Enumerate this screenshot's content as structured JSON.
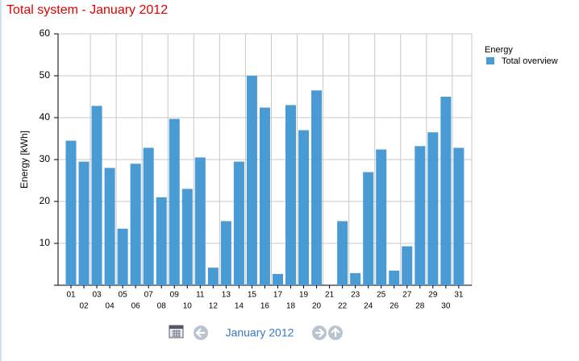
{
  "chart_data": {
    "type": "bar",
    "title": "Total system - January 2012",
    "y_label": "Energy [kWh]",
    "legend_title": "Energy",
    "legend": "top-right",
    "grid": true,
    "categories": [
      "01",
      "02",
      "03",
      "04",
      "05",
      "06",
      "07",
      "08",
      "09",
      "10",
      "11",
      "12",
      "13",
      "14",
      "15",
      "16",
      "17",
      "18",
      "19",
      "20",
      "21",
      "22",
      "23",
      "24",
      "25",
      "26",
      "27",
      "28",
      "29",
      "30",
      "31"
    ],
    "series": [
      {
        "name": "Total overview",
        "color": "#4a9ad4",
        "values": [
          34.5,
          29.5,
          42.8,
          28,
          13.5,
          29,
          32.8,
          21,
          39.7,
          23,
          30.5,
          4.2,
          15.3,
          29.5,
          50,
          42.4,
          2.7,
          43,
          37,
          46.5,
          null,
          15.3,
          2.9,
          27,
          32.4,
          3.5,
          9.3,
          33.2,
          36.5,
          45,
          32.8
        ]
      }
    ],
    "ylim": [
      0,
      60
    ],
    "yticks": [
      10,
      20,
      30,
      40,
      50,
      60
    ]
  },
  "nav": {
    "period": "January 2012"
  }
}
